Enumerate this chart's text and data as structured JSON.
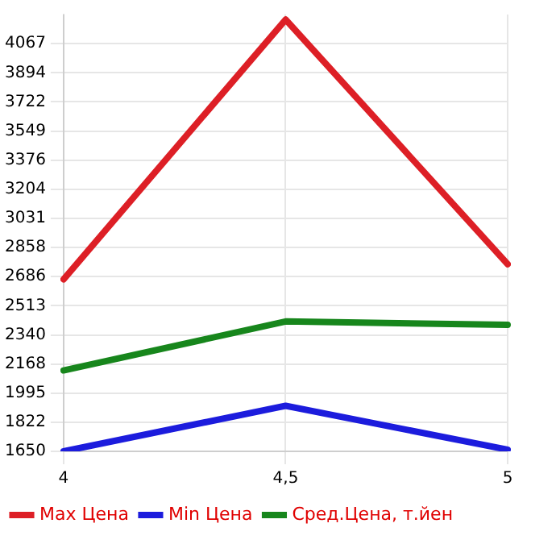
{
  "chart_data": {
    "type": "line",
    "categories": [
      "4",
      "4,5",
      "5"
    ],
    "series": [
      {
        "name": "Max Цена",
        "color": "#dd1f26",
        "values": [
          2670,
          4210,
          2760
        ]
      },
      {
        "name": "Min Цена",
        "color": "#1c1cdd",
        "values": [
          1650,
          1920,
          1660
        ]
      },
      {
        "name": "Сред.Цена, т.йен",
        "color": "#17861c",
        "values": [
          2130,
          2420,
          2400
        ]
      }
    ],
    "ylim": [
      1650,
      4240
    ],
    "yticks": [
      1650,
      1822,
      1995,
      2168,
      2340,
      2513,
      2686,
      2858,
      3031,
      3204,
      3376,
      3549,
      3722,
      3894,
      4067
    ],
    "grid": true,
    "legend": "bottom",
    "marker": "none",
    "line_style": "solid"
  }
}
